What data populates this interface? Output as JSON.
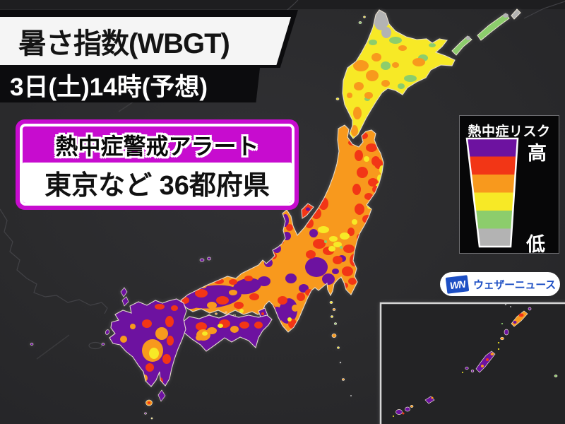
{
  "header": {
    "title": "暑さ指数(WBGT)",
    "datetime": "3日(土)14時(予想)"
  },
  "alert": {
    "title": "熱中症警戒アラート",
    "subtitle": "東京など 36都府県",
    "color": "#c70ccf"
  },
  "legend": {
    "title": "熱中症リスク",
    "high_label": "高",
    "low_label": "低",
    "levels": [
      {
        "key": "purple",
        "risk": "highest",
        "color": "#6d12a0"
      },
      {
        "key": "red",
        "risk": "very-high",
        "color": "#f23616"
      },
      {
        "key": "orange",
        "risk": "high",
        "color": "#f8991d"
      },
      {
        "key": "yellow",
        "risk": "moderate",
        "color": "#f7e926"
      },
      {
        "key": "green",
        "risk": "low",
        "color": "#8ccd6c"
      },
      {
        "key": "gray",
        "risk": "lowest",
        "color": "#b3b3b3"
      }
    ]
  },
  "logo": {
    "mark": "WN",
    "text": "ウェザーニュース",
    "brand_color": "#1d4fc4"
  },
  "map": {
    "region": "japan-wbgt-heat-index-map",
    "inset": "okinawa-southwest-islands",
    "sea_color": "#2a2a2c",
    "outline_color": "#eae2d2"
  }
}
